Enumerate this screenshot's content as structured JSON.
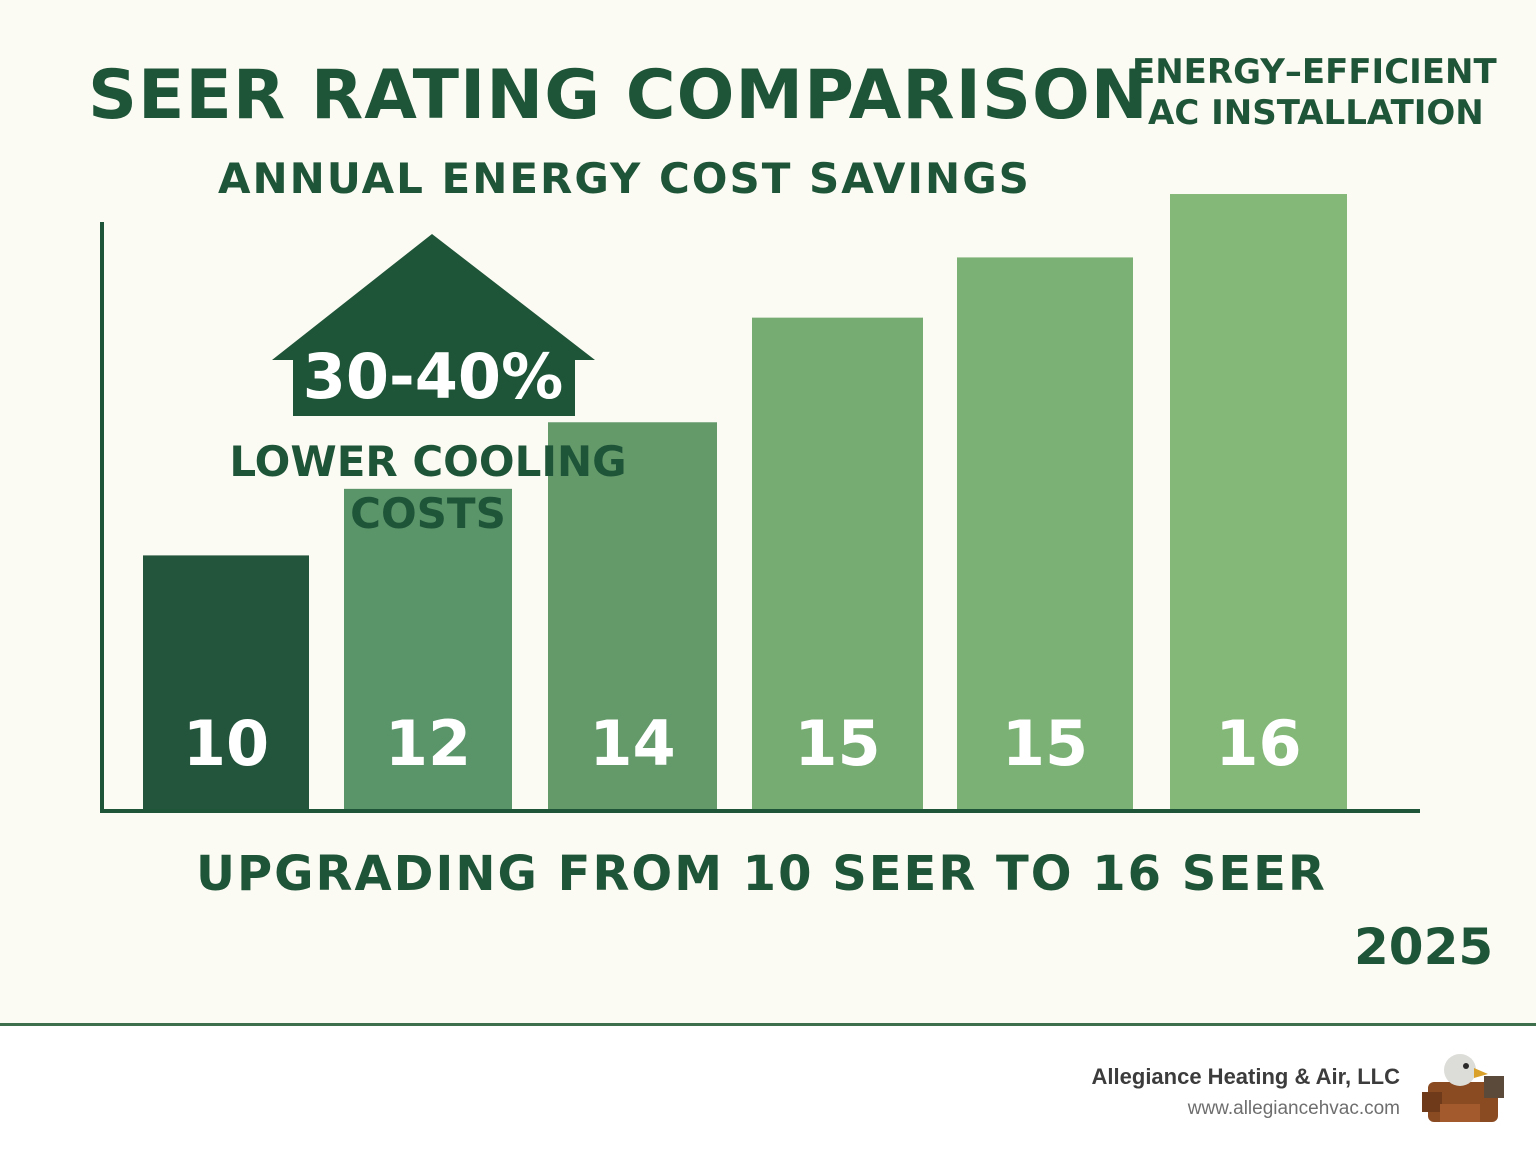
{
  "title": "SEER RATING COMPARISON",
  "corner_label": {
    "line1": "ENERGY–EFFICIENT",
    "line2": "AC INSTALLATION"
  },
  "subtitle": "ANNUAL ENERGY COST SAVINGS",
  "callout": {
    "value": "30-40%",
    "label": "LOWER COOLING COSTS"
  },
  "footnote": "UPGRADING FROM 10 SEER TO 16 SEER",
  "year": "2025",
  "footer": {
    "company": "Allegiance Heating & Air, LLC",
    "website": "www.allegiancehvac.com",
    "logo_icon": "eagle-logo-icon"
  },
  "colors": {
    "text": "#1e5438",
    "bars": [
      "#23553c",
      "#5a9469",
      "#64996a",
      "#76ab72",
      "#7bb175",
      "#84b878"
    ],
    "background": "#fcfbf3"
  },
  "chart_data": {
    "type": "bar",
    "title": "SEER RATING COMPARISON",
    "subtitle": "ANNUAL ENERGY COST SAVINGS",
    "xlabel": "",
    "ylabel": "",
    "categories": [
      "10",
      "12",
      "14",
      "15",
      "15",
      "16"
    ],
    "values": [
      10,
      12,
      14,
      15,
      15,
      16
    ],
    "heights": [
      8,
      10.1,
      12.2,
      15.5,
      17.4,
      19.4
    ],
    "ylim": [
      0,
      20
    ],
    "grid": false,
    "legend": "none",
    "data_labels": [
      "10",
      "12",
      "14",
      "15",
      "15",
      "16"
    ]
  }
}
